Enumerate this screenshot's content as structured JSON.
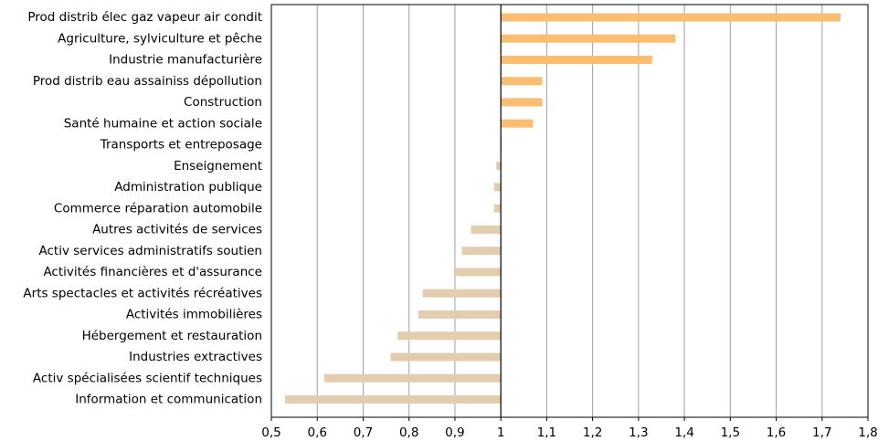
{
  "chart_data": {
    "type": "bar",
    "orientation": "horizontal",
    "baseline": 1,
    "categories": [
      "Prod distrib élec gaz vapeur air condit",
      "Agriculture, sylviculture et pêche",
      "Industrie manufacturière",
      "Prod distrib eau assainiss dépollution",
      "Construction",
      "Santé humaine et action sociale",
      "Transports et entreposage",
      "Enseignement",
      "Administration publique",
      "Commerce réparation automobile",
      "Autres activités de services",
      "Activ services administratifs soutien",
      "Activités financières et d'assurance",
      "Arts spectacles et activités récréatives",
      "Activités immobilières",
      "Hébergement et restauration",
      "Industries extractives",
      "Activ spécialisées scientif techniques",
      "Information et communication"
    ],
    "values": [
      1.74,
      1.38,
      1.33,
      1.09,
      1.09,
      1.07,
      1.0,
      0.99,
      0.985,
      0.985,
      0.935,
      0.915,
      0.9,
      0.83,
      0.82,
      0.775,
      0.76,
      0.615,
      0.53
    ],
    "xlim": [
      0.5,
      1.8
    ],
    "xticks": [
      "0,5",
      "0,6",
      "0,7",
      "0,8",
      "0,9",
      "1",
      "1,1",
      "1,2",
      "1,3",
      "1,4",
      "1,5",
      "1,6",
      "1,7",
      "1,8"
    ],
    "xtick_values": [
      0.5,
      0.6,
      0.7,
      0.8,
      0.9,
      1.0,
      1.1,
      1.2,
      1.3,
      1.4,
      1.5,
      1.6,
      1.7,
      1.8
    ],
    "grid": "vertical",
    "colors": {
      "above": "#fbbd70",
      "below": "#e2cdae",
      "grid": "#a0a0a0",
      "baseline": "#000000"
    }
  }
}
